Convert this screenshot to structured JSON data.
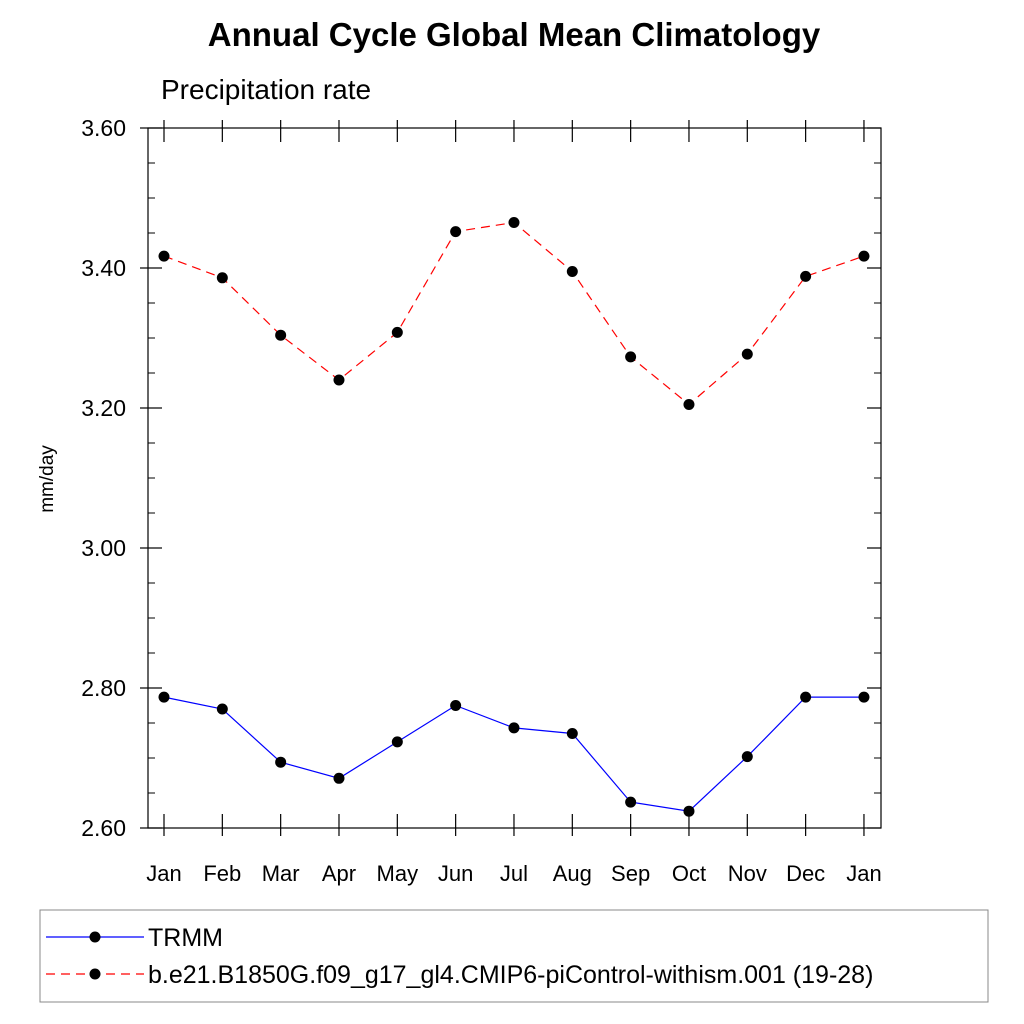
{
  "chart_data": {
    "type": "line",
    "title": "Annual Cycle Global Mean Climatology",
    "subtitle": "Precipitation rate",
    "xlabel": "",
    "ylabel": "mm/day",
    "categories": [
      "Jan",
      "Feb",
      "Mar",
      "Apr",
      "May",
      "Jun",
      "Jul",
      "Aug",
      "Sep",
      "Oct",
      "Nov",
      "Dec",
      "Jan"
    ],
    "ylim": [
      2.6,
      3.6
    ],
    "yticks": [
      "2.60",
      "2.80",
      "3.00",
      "3.20",
      "3.40",
      "3.60"
    ],
    "grid": false,
    "legend_position": "bottom",
    "series": [
      {
        "name": "TRMM",
        "color": "#0000ff",
        "line_style": "solid",
        "marker": "filled-circle",
        "values": [
          2.787,
          2.77,
          2.694,
          2.671,
          2.723,
          2.775,
          2.743,
          2.735,
          2.637,
          2.624,
          2.702,
          2.787,
          2.787
        ]
      },
      {
        "name": "b.e21.B1850G.f09_g17_gl4.CMIP6-piControl-withism.001 (19-28)",
        "color": "#ff0000",
        "line_style": "dashed",
        "marker": "filled-circle",
        "values": [
          3.417,
          3.386,
          3.304,
          3.24,
          3.308,
          3.452,
          3.465,
          3.395,
          3.273,
          3.205,
          3.277,
          3.388,
          3.417
        ]
      }
    ]
  }
}
